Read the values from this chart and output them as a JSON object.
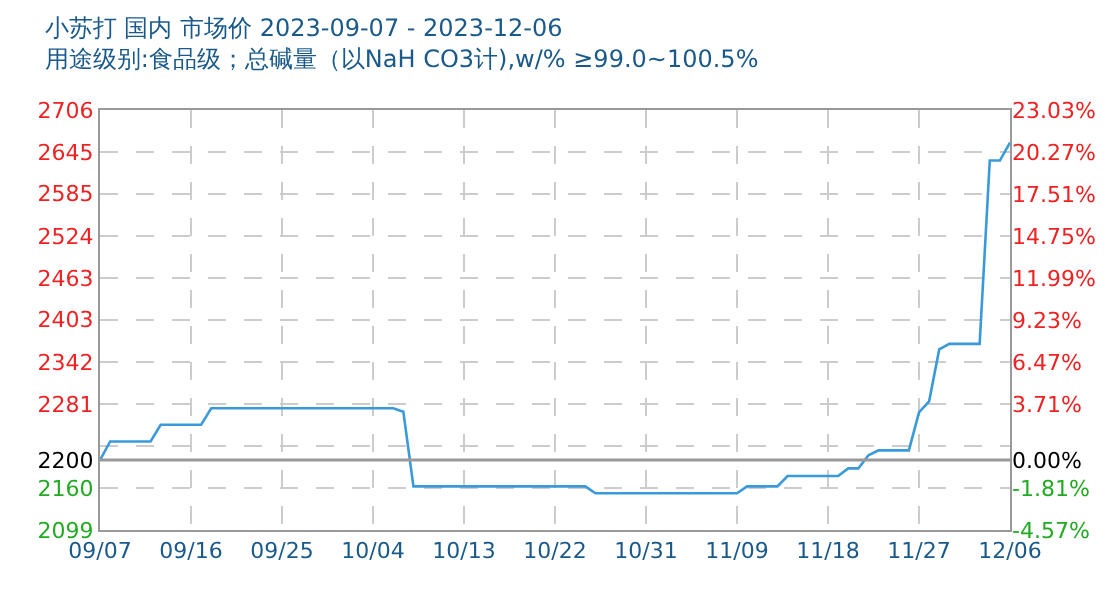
{
  "chart_data": {
    "type": "line",
    "title": "小苏打 国内 市场价 2023-09-07 - 2023-12-06",
    "subtitle": "用途级别:食品级；总碱量（以NaH CO3计),w/% ≥99.0~100.5%",
    "x": [
      "2023-09-07",
      "2023-09-08",
      "2023-09-12",
      "2023-09-13",
      "2023-09-17",
      "2023-09-18",
      "2023-10-06",
      "2023-10-07",
      "2023-10-08",
      "2023-10-25",
      "2023-10-26",
      "2023-11-09",
      "2023-11-10",
      "2023-11-13",
      "2023-11-14",
      "2023-11-19",
      "2023-11-20",
      "2023-11-21",
      "2023-11-22",
      "2023-11-23",
      "2023-11-26",
      "2023-11-27",
      "2023-11-28",
      "2023-11-29",
      "2023-11-30",
      "2023-12-03",
      "2023-12-04",
      "2023-12-05",
      "2023-12-06"
    ],
    "series": [
      {
        "color": "#3a9ad9",
        "values": [
          2200,
          2227,
          2227,
          2251,
          2251,
          2275,
          2275,
          2270,
          2162,
          2162,
          2152,
          2152,
          2162,
          2162,
          2177,
          2177,
          2188,
          2188,
          2207,
          2214,
          2214,
          2269,
          2285,
          2360,
          2368,
          2368,
          2633,
          2633,
          2659
        ]
      }
    ],
    "xlim": [
      "2023-09-07",
      "2023-12-06"
    ],
    "xticks": [
      {
        "value": "2023-09-07",
        "label": "09/07"
      },
      {
        "value": "2023-09-16",
        "label": "09/16"
      },
      {
        "value": "2023-09-25",
        "label": "09/25"
      },
      {
        "value": "2023-10-04",
        "label": "10/04"
      },
      {
        "value": "2023-10-13",
        "label": "10/13"
      },
      {
        "value": "2023-10-22",
        "label": "10/22"
      },
      {
        "value": "2023-10-31",
        "label": "10/31"
      },
      {
        "value": "2023-11-09",
        "label": "11/09"
      },
      {
        "value": "2023-11-18",
        "label": "11/18"
      },
      {
        "value": "2023-11-27",
        "label": "11/27"
      },
      {
        "value": "2023-12-06",
        "label": "12/06"
      }
    ],
    "ylim": [
      2099,
      2706
    ],
    "yticks": [
      2099,
      2160,
      2200,
      {
        "value": 2220,
        "label": null
      },
      2281,
      2342,
      2403,
      2463,
      2524,
      2585,
      2645,
      2706
    ],
    "y2lim": [
      -4.57,
      23.03
    ],
    "y2ticks": [
      {
        "value": -4.57,
        "label": "-4.57%"
      },
      {
        "value": -1.81,
        "label": "-1.81%"
      },
      {
        "value": 0,
        "label": "0.00%"
      },
      {
        "value": 3.71,
        "label": "3.71%"
      },
      {
        "value": 6.47,
        "label": "6.47%"
      },
      {
        "value": 9.23,
        "label": "9.23%"
      },
      {
        "value": 11.99,
        "label": "11.99%"
      },
      {
        "value": 14.75,
        "label": "14.75%"
      },
      {
        "value": 17.51,
        "label": "17.51%"
      },
      {
        "value": 20.27,
        "label": "20.27%"
      },
      {
        "value": 23.03,
        "label": "23.03%"
      }
    ],
    "ref_lines": [
      {
        "axis": "y",
        "value": 2200,
        "color": "#999999",
        "line_style": "solid"
      }
    ],
    "grid": true,
    "marker": "none",
    "line_style": "solid"
  }
}
